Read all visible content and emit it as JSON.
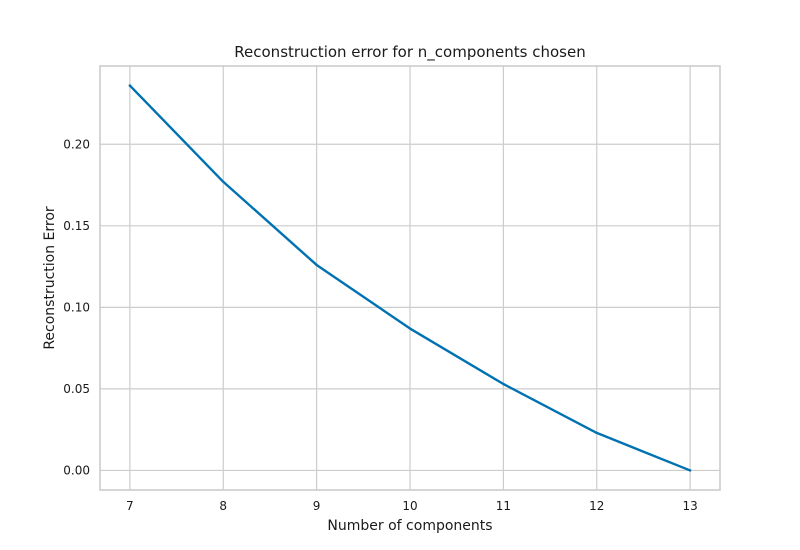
{
  "chart_data": {
    "type": "line",
    "title": "Reconstruction error for n_components chosen",
    "xlabel": "Number of components",
    "ylabel": "Reconstruction Error",
    "x": [
      7,
      8,
      9,
      10,
      11,
      12,
      13
    ],
    "series": [
      {
        "values": [
          0.236,
          0.177,
          0.126,
          0.087,
          0.053,
          0.023,
          0.0
        ],
        "color": "#0072b2"
      }
    ],
    "xlim": [
      6.68,
      13.32
    ],
    "ylim": [
      -0.012,
      0.248
    ],
    "xticks": [
      "7",
      "8",
      "9",
      "10",
      "11",
      "12",
      "13"
    ],
    "yticks": [
      "0.00",
      "0.05",
      "0.10",
      "0.15",
      "0.20"
    ],
    "grid": true,
    "legend": "none"
  }
}
